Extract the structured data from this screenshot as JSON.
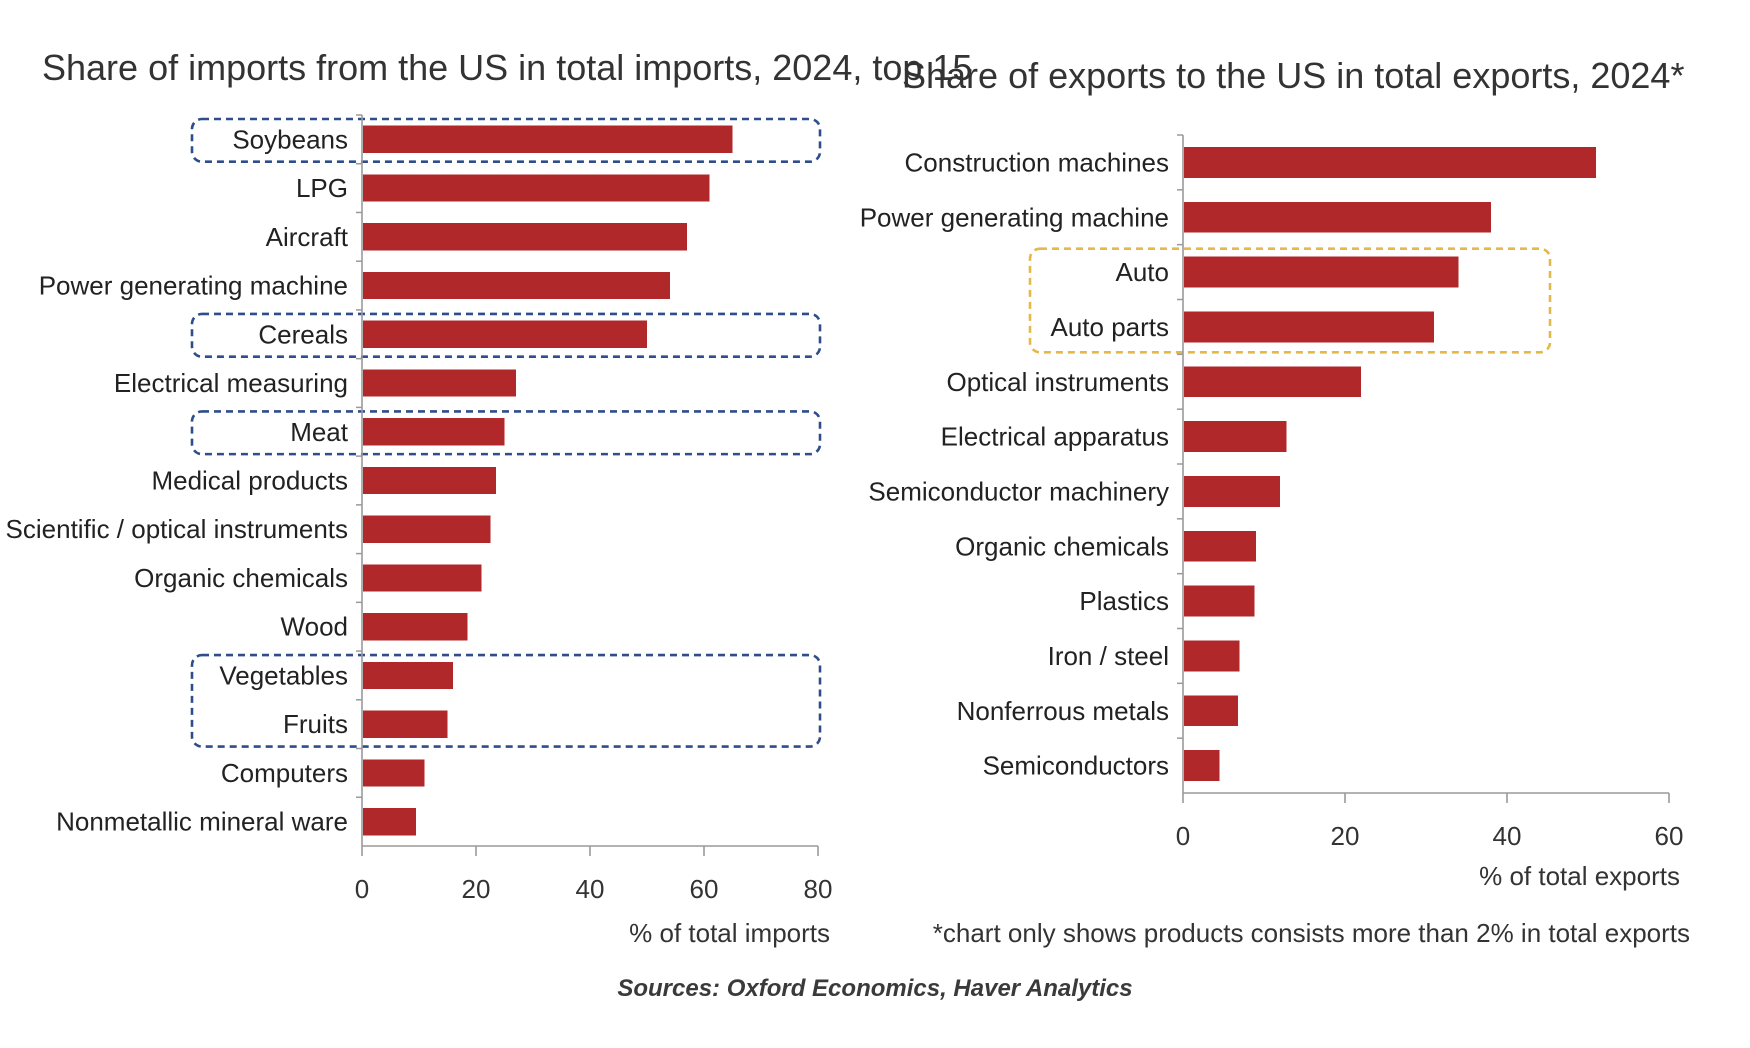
{
  "chart_data": [
    {
      "type": "bar",
      "orientation": "horizontal",
      "title": "Share of imports from the US in total imports, 2024, top 15",
      "xlabel": "% of total imports",
      "ylabel": "",
      "xlim": [
        0,
        80
      ],
      "ticks": [
        "0",
        "20",
        "40",
        "60",
        "80"
      ],
      "grid": false,
      "bar_color": "#b0282a",
      "categories": [
        "Soybeans",
        "LPG",
        "Aircraft",
        "Power generating machine",
        "Cereals",
        "Electrical measuring",
        "Meat",
        "Medical products",
        "Scientific / optical instruments",
        "Organic chemicals",
        "Wood",
        "Vegetables",
        "Fruits",
        "Computers",
        "Nonmetallic mineral ware"
      ],
      "values": [
        65,
        61,
        57,
        54,
        50,
        27,
        25,
        23.5,
        22.5,
        21,
        18.5,
        16,
        15,
        11,
        9.5
      ],
      "highlight_groups": [
        {
          "categories": [
            "Soybeans"
          ],
          "color": "#2f4d8a"
        },
        {
          "categories": [
            "Cereals"
          ],
          "color": "#2f4d8a"
        },
        {
          "categories": [
            "Meat"
          ],
          "color": "#2f4d8a"
        },
        {
          "categories": [
            "Vegetables",
            "Fruits"
          ],
          "color": "#2f4d8a"
        }
      ]
    },
    {
      "type": "bar",
      "orientation": "horizontal",
      "title": "Share of exports to the US in total exports, 2024*",
      "xlabel": "% of total exports",
      "ylabel": "",
      "xlim": [
        0,
        60
      ],
      "ticks": [
        "0",
        "20",
        "40",
        "60"
      ],
      "grid": false,
      "bar_color": "#b0282a",
      "categories": [
        "Construction machines",
        "Power generating machine",
        "Auto",
        "Auto parts",
        "Optical instruments",
        "Electrical apparatus",
        "Semiconductor machinery",
        "Organic chemicals",
        "Plastics",
        "Iron / steel",
        "Nonferrous metals",
        "Semiconductors"
      ],
      "values": [
        51,
        38,
        34,
        31,
        22,
        12.8,
        12,
        9,
        8.8,
        7,
        6.8,
        4.5
      ],
      "highlight_groups": [
        {
          "categories": [
            "Auto",
            "Auto parts"
          ],
          "color": "#e3b94a"
        }
      ],
      "footnote": "*chart only shows products consists more than 2% in total exports"
    }
  ],
  "source": "Sources: Oxford Economics, Haver Analytics"
}
